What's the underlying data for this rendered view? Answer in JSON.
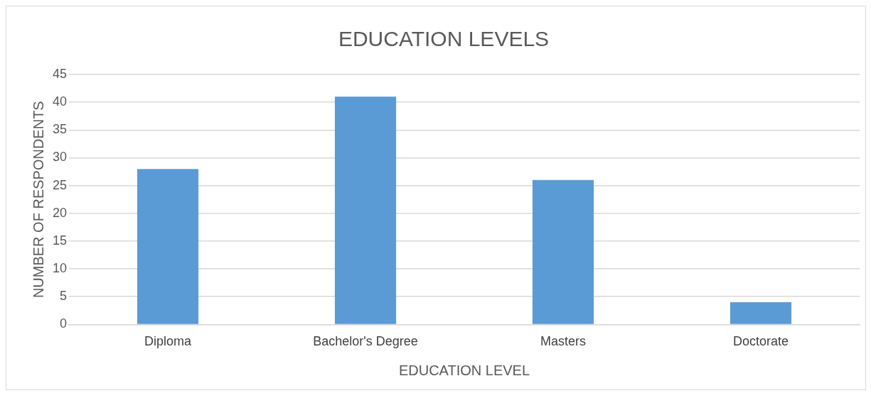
{
  "chart_data": {
    "type": "bar",
    "title": "EDUCATION LEVELS",
    "xlabel": "EDUCATION LEVEL",
    "ylabel": "NUMBER OF RESPONDENTS",
    "categories": [
      "Diploma",
      "Bachelor's Degree",
      "Masters",
      "Doctorate"
    ],
    "values": [
      28,
      41,
      26,
      4
    ],
    "color": "#5b9bd5",
    "ylim": [
      0,
      45
    ],
    "yticks": [
      0,
      5,
      10,
      15,
      20,
      25,
      30,
      35,
      40,
      45
    ],
    "grid": "y",
    "legend": false
  }
}
